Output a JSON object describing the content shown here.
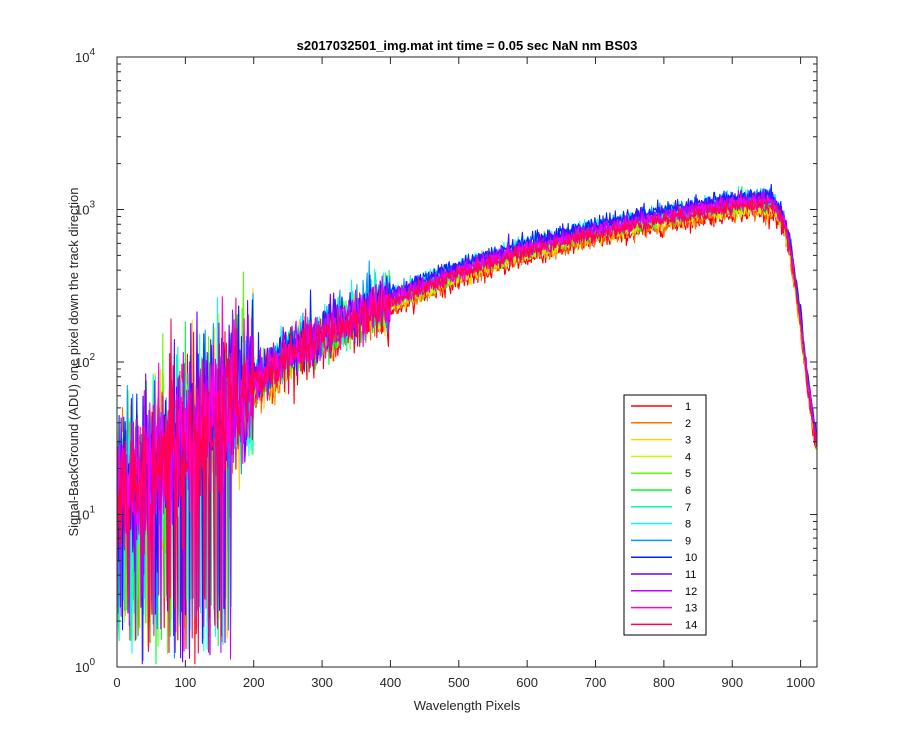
{
  "chart_data": {
    "type": "line",
    "title": "s2017032501_img.mat int time = 0.05 sec  NaN nm BS03",
    "xlabel": "Wavelength Pixels",
    "ylabel": "Signal-BackGround (ADU) one pixel down the track direction",
    "xlim": [
      0,
      1024
    ],
    "ylim": [
      1,
      10000
    ],
    "yscale": "log",
    "x_ticks": [
      0,
      100,
      200,
      300,
      400,
      500,
      600,
      700,
      800,
      900,
      1000
    ],
    "x_tick_labels": [
      "0",
      "100",
      "200",
      "300",
      "400",
      "500",
      "600",
      "700",
      "800",
      "900",
      "1000"
    ],
    "y_ticks": [
      1,
      10,
      100,
      1000,
      10000
    ],
    "y_tick_labels": [
      {
        "base": "10",
        "exp": "0"
      },
      {
        "base": "10",
        "exp": "1"
      },
      {
        "base": "10",
        "exp": "2"
      },
      {
        "base": "10",
        "exp": "3"
      },
      {
        "base": "10",
        "exp": "4"
      }
    ],
    "legend_position": "lower-right",
    "series": [
      {
        "name": "1",
        "color": "#ff0000",
        "scale": 0.8
      },
      {
        "name": "2",
        "color": "#ff6f00",
        "scale": 0.83
      },
      {
        "name": "3",
        "color": "#ffd500",
        "scale": 0.86
      },
      {
        "name": "4",
        "color": "#bfff00",
        "scale": 0.88
      },
      {
        "name": "5",
        "color": "#5aff00",
        "scale": 0.91
      },
      {
        "name": "6",
        "color": "#00ff2e",
        "scale": 0.93
      },
      {
        "name": "7",
        "color": "#00ffa0",
        "scale": 0.96
      },
      {
        "name": "8",
        "color": "#00ffff",
        "scale": 1.02
      },
      {
        "name": "9",
        "color": "#009dff",
        "scale": 1.0
      },
      {
        "name": "10",
        "color": "#0024ff",
        "scale": 1.04
      },
      {
        "name": "11",
        "color": "#6a00ff",
        "scale": 0.99
      },
      {
        "name": "12",
        "color": "#c700ff",
        "scale": 0.95
      },
      {
        "name": "13",
        "color": "#ff00d9",
        "scale": 0.92
      },
      {
        "name": "14",
        "color": "#ff0055",
        "scale": 0.89
      }
    ],
    "baseline_profile": {
      "x": [
        0,
        50,
        100,
        150,
        200,
        250,
        300,
        350,
        400,
        450,
        500,
        550,
        600,
        650,
        700,
        750,
        800,
        850,
        900,
        940,
        960,
        975,
        985,
        1000,
        1010,
        1024
      ],
      "y": [
        14,
        20,
        32,
        50,
        80,
        118,
        160,
        210,
        270,
        340,
        420,
        500,
        590,
        680,
        770,
        860,
        960,
        1060,
        1160,
        1200,
        1180,
        900,
        600,
        200,
        80,
        30
      ]
    }
  }
}
